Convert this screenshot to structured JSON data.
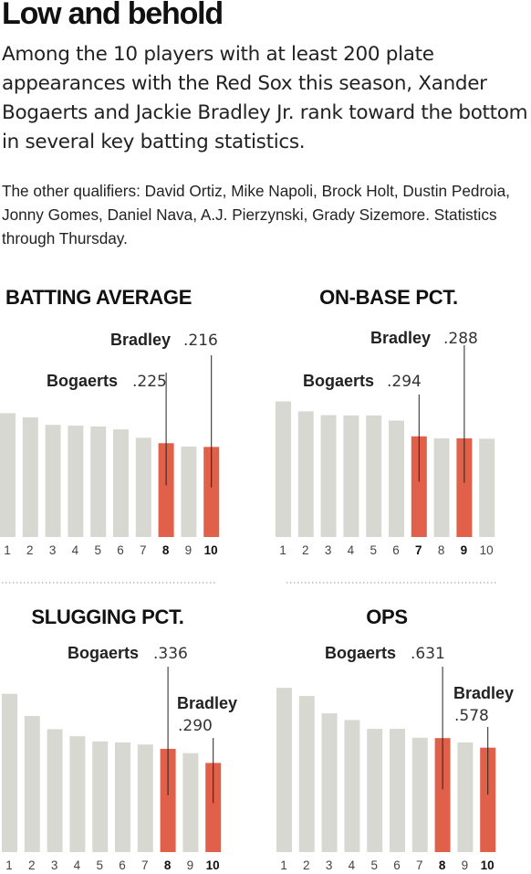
{
  "headline": "Low and behold",
  "dek": "Among the 10 players with at least 200 plate appearances with the Red Sox this season, Xander Bogaerts and Jackie Bradley Jr. rank toward the bottom in several key batting statistics.",
  "note": "The other qualifiers: David Ortiz, Mike Napoli, Brock Holt, Dustin Pedroia, Jonny Gomes, Daniel Nava, A.J. Pierzynski, Grady Sizemore. Statistics through Thursday.",
  "colors": {
    "bar": "#d8d8d3",
    "highlight": "#e0604a",
    "leader": "#222222",
    "divider": "#999999"
  },
  "chart_data": [
    {
      "type": "bar",
      "title": "BATTING AVERAGE",
      "categories": [
        "1",
        "2",
        "3",
        "4",
        "5",
        "6",
        "7",
        "8",
        "9",
        "10"
      ],
      "values": [
        0.297,
        0.287,
        0.269,
        0.267,
        0.265,
        0.258,
        0.238,
        0.225,
        0.217,
        0.216
      ],
      "ylim": [
        0,
        0.3
      ],
      "highlights": [
        {
          "index": 7,
          "name": "Bogaerts",
          "value": ".225"
        },
        {
          "index": 9,
          "name": "Bradley",
          "value": ".216"
        }
      ]
    },
    {
      "type": "bar",
      "title": "ON-BASE PCT.",
      "categories": [
        "1",
        "2",
        "3",
        "4",
        "5",
        "6",
        "7",
        "8",
        "9",
        "10"
      ],
      "values": [
        0.396,
        0.367,
        0.356,
        0.355,
        0.355,
        0.34,
        0.294,
        0.288,
        0.288,
        0.287
      ],
      "ylim": [
        0,
        0.4
      ],
      "highlights": [
        {
          "index": 6,
          "name": "Bogaerts",
          "value": ".294"
        },
        {
          "index": 8,
          "name": "Bradley",
          "value": ".288"
        }
      ]
    },
    {
      "type": "bar",
      "title": "SLUGGING PCT.",
      "categories": [
        "1",
        "2",
        "3",
        "4",
        "5",
        "6",
        "7",
        "8",
        "9",
        "10"
      ],
      "values": [
        0.515,
        0.443,
        0.4,
        0.377,
        0.36,
        0.357,
        0.35,
        0.336,
        0.322,
        0.29
      ],
      "ylim": [
        0,
        0.52
      ],
      "highlights": [
        {
          "index": 7,
          "name": "Bogaerts",
          "value": ".336"
        },
        {
          "index": 9,
          "name": "Bradley",
          "value": ".290"
        }
      ]
    },
    {
      "type": "bar",
      "title": "OPS",
      "categories": [
        "1",
        "2",
        "3",
        "4",
        "5",
        "6",
        "7",
        "8",
        "9",
        "10"
      ],
      "values": [
        0.909,
        0.864,
        0.768,
        0.731,
        0.682,
        0.682,
        0.633,
        0.631,
        0.607,
        0.578
      ],
      "ylim": [
        0,
        0.92
      ],
      "highlights": [
        {
          "index": 7,
          "name": "Bogaerts",
          "value": ".631"
        },
        {
          "index": 9,
          "name": "Bradley",
          "value": ".578"
        }
      ]
    }
  ]
}
